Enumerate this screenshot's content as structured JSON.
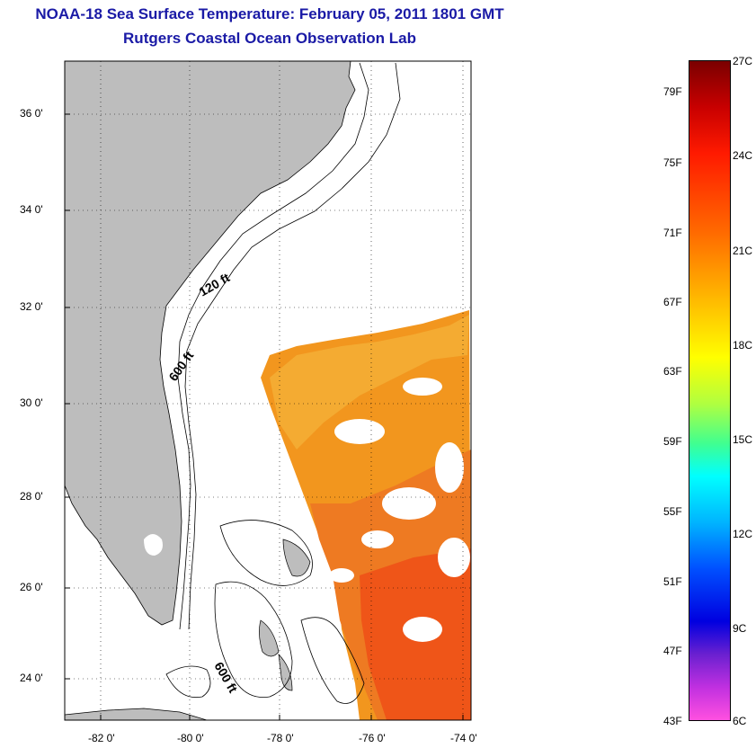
{
  "title": {
    "line1": "NOAA-18 Sea Surface Temperature:  February 05, 2011 1801 GMT",
    "line2": "Rutgers Coastal Ocean Observation Lab"
  },
  "lat_labels": [
    "36 0'",
    "34 0'",
    "32 0'",
    "30 0'",
    "28 0'",
    "26 0'",
    "24 0'"
  ],
  "lon_labels": [
    "-82 0'",
    "-80 0'",
    "-78 0'",
    "-76 0'",
    "-74 0'"
  ],
  "isobaths": {
    "a": "120 ft",
    "b": "600 ft",
    "c": "600 ft"
  },
  "colorbar": {
    "f_labels": [
      "79F",
      "75F",
      "71F",
      "67F",
      "63F",
      "59F",
      "55F",
      "51F",
      "47F",
      "43F"
    ],
    "c_labels": [
      "27C",
      "24C",
      "21C",
      "18C",
      "15C",
      "12C",
      "9C",
      "6C"
    ],
    "max_color": "#7a0000",
    "min_color": "#ff50e0"
  },
  "colors": {
    "land": "#bdbdbd",
    "title": "#1a1aa6",
    "sst_warm": "#f08a20",
    "sst_hot": "#f05018"
  }
}
